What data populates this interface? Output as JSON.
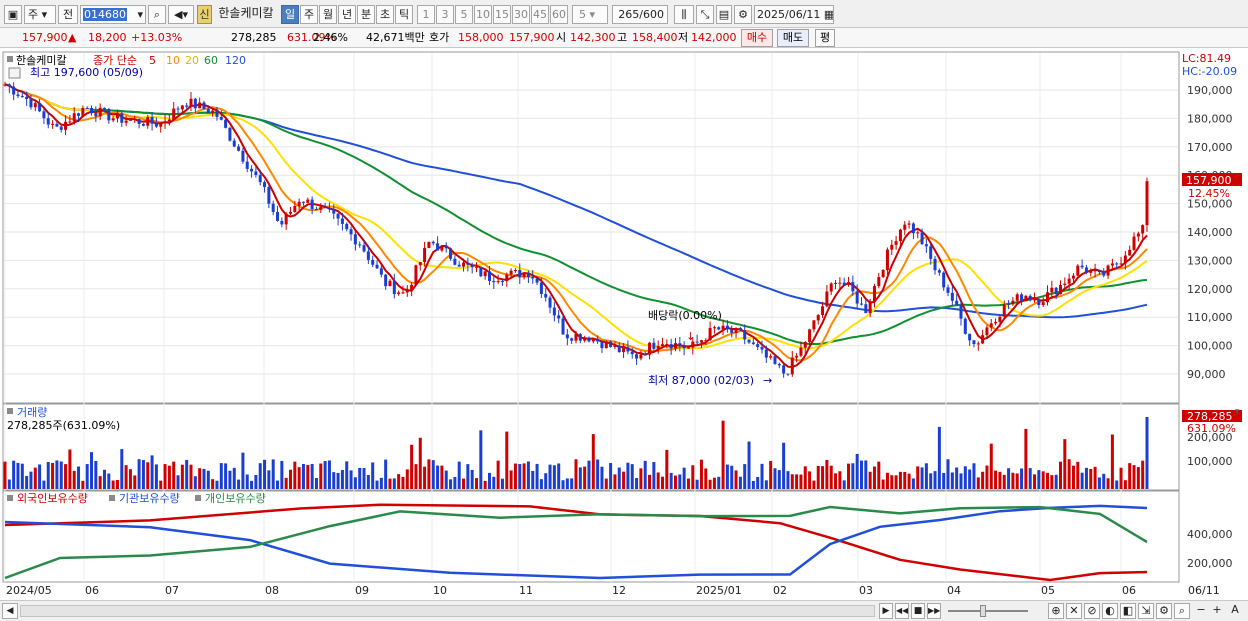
{
  "toolbar": {
    "market_type": "주",
    "prefix": "전",
    "stock_code": "014680",
    "badge_new": "신",
    "stock_name": "한솔케미칼",
    "periods": [
      "일",
      "주",
      "월",
      "년",
      "분",
      "초",
      "틱"
    ],
    "active_period": "일",
    "intervals": [
      "1",
      "3",
      "5",
      "10",
      "15",
      "30",
      "45",
      "60"
    ],
    "interval_select": "5",
    "count": "265",
    "count_total": "/600",
    "date": "2025/06/11"
  },
  "quote": {
    "price": "157,900",
    "change": "18,200",
    "change_pct": "+13.03%",
    "volume": "278,285",
    "volume_ratio": "631.09%",
    "turnover_pct": "2.46%",
    "amount": "42,671백만",
    "ask_label": "호가",
    "ask": "158,000",
    "bid": "157,900",
    "open_label": "시",
    "open": "142,300",
    "high_label": "고",
    "high": "158,400",
    "low_label": "저",
    "low": "142,000",
    "buy_label": "매수",
    "sell_label": "매도",
    "avg_label": "평"
  },
  "price_panel": {
    "legend_name": "한솔케미칼",
    "legend_series": "종가 단순",
    "ma_periods": [
      "5",
      "10",
      "20",
      "60",
      "120"
    ],
    "ma_colors": [
      "#cc0000",
      "#ff8800",
      "#e6c800",
      "#109030",
      "#2050d8"
    ],
    "high_note": "최고 197,600 (05/09)",
    "dividend_note": "배당락(0.00%)",
    "low_note": "최저 87,000 (02/03)",
    "lc": "LC:81.49",
    "hc": "HC:-20.09",
    "current_price_tag": "157,900",
    "current_pct_tag": "12.45%",
    "y_ticks": [
      "190,000",
      "180,000",
      "170,000",
      "160,000",
      "150,000",
      "140,000",
      "130,000",
      "120,000",
      "110,000",
      "100,000",
      "90,000"
    ]
  },
  "volume_panel": {
    "title": "거래량",
    "value_label": "278,285주(631.09%)",
    "tag_value": "278,285",
    "tag_pct": "631.09%",
    "y_ticks": [
      "200,000",
      "100,000"
    ]
  },
  "holding_panel": {
    "series": [
      "외국인보유수량",
      "기관보유수량",
      "개인보유수량"
    ],
    "colors": [
      "#d00000",
      "#2050d8",
      "#2a8a4a"
    ],
    "y_ticks": [
      "400,000",
      "200,000"
    ]
  },
  "x_axis": {
    "labels": [
      "2024/05",
      "06",
      "07",
      "08",
      "09",
      "10",
      "11",
      "12",
      "2025/01",
      "02",
      "03",
      "04",
      "05",
      "06",
      "06/11"
    ]
  }
}
